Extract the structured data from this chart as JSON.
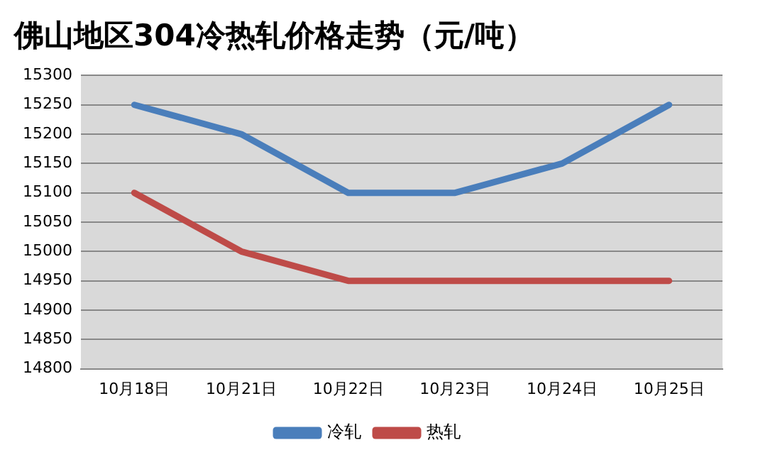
{
  "chart_data": {
    "type": "line",
    "title": "佛山地区304冷热轧价格走势（元/吨）",
    "categories": [
      "10月18日",
      "10月21日",
      "10月22日",
      "10月23日",
      "10月24日",
      "10月25日"
    ],
    "series": [
      {
        "name": "冷轧",
        "color": "#4a7ebb",
        "values": [
          15250,
          15200,
          15100,
          15100,
          15150,
          15250
        ]
      },
      {
        "name": "热轧",
        "color": "#be4b48",
        "values": [
          15100,
          15000,
          14950,
          14950,
          14950,
          14950
        ]
      }
    ],
    "ylim": [
      14800,
      15300
    ],
    "yticks": [
      14800,
      14850,
      14900,
      14950,
      15000,
      15050,
      15100,
      15150,
      15200,
      15250,
      15300
    ],
    "grid": "y",
    "legend": "bottom",
    "marker": "none",
    "line_style": "solid"
  }
}
